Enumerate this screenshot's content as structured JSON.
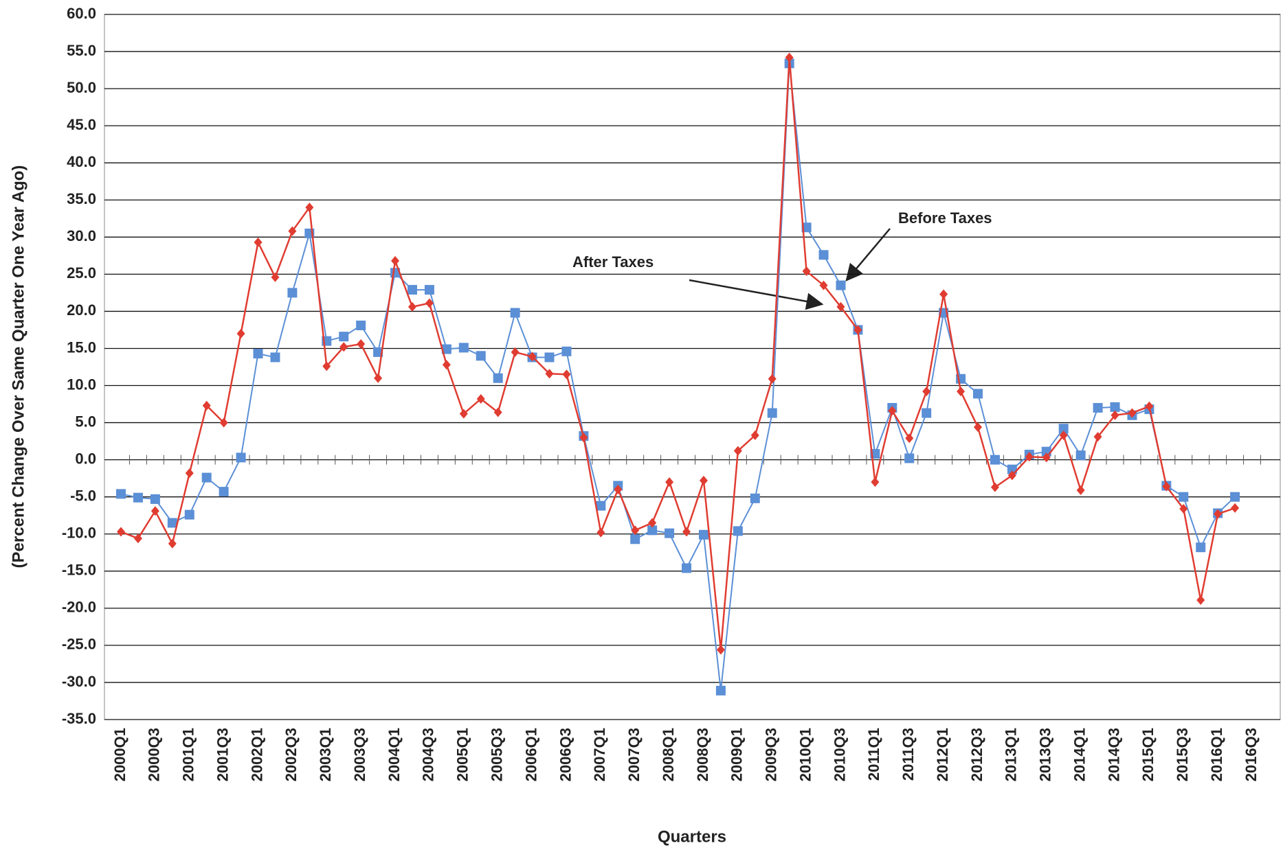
{
  "chart_data": {
    "type": "line",
    "x_label": "Quarters",
    "y_label": "(Percent Change Over Same Quarter One Year Ago)",
    "categories": [
      "2000Q1",
      null,
      "2000Q3",
      null,
      "2001Q1",
      null,
      "2001Q3",
      null,
      "2002Q1",
      null,
      "2002Q3",
      null,
      "2003Q1",
      null,
      "2003Q3",
      null,
      "2004Q1",
      null,
      "2004Q3",
      null,
      "2005Q1",
      null,
      "2005Q3",
      null,
      "2006Q1",
      null,
      "2006Q3",
      null,
      "2007Q1",
      null,
      "2007Q3",
      null,
      "2008Q1",
      null,
      "2008Q3",
      null,
      "2009Q1",
      null,
      "2009Q3",
      null,
      "2010Q1",
      null,
      "2010Q3",
      null,
      "2011Q1",
      null,
      "2011Q3",
      null,
      "2012Q1",
      null,
      "2012Q3",
      null,
      "2013Q1",
      null,
      "2013Q3",
      null,
      "2014Q1",
      null,
      "2014Q3",
      null,
      "2015Q1",
      null,
      "2015Q3",
      null,
      "2016Q1",
      null,
      "2016Q3"
    ],
    "series": [
      {
        "name": "Before Taxes",
        "color": "#5b8fd6",
        "marker": "square",
        "values": [
          -4.6,
          -5.1,
          -5.3,
          -8.5,
          -7.4,
          -2.4,
          -4.3,
          0.3,
          14.3,
          13.8,
          22.5,
          30.5,
          16.0,
          16.6,
          18.1,
          14.5,
          25.2,
          22.9,
          22.9,
          14.9,
          15.1,
          14.0,
          11.0,
          19.8,
          13.8,
          13.8,
          14.6,
          3.2,
          -6.2,
          -3.5,
          -10.7,
          -9.5,
          -9.9,
          -14.6,
          -10.1,
          -31.1,
          -9.6,
          -5.2,
          6.3,
          53.4,
          31.3,
          27.6,
          23.5,
          17.5,
          0.8,
          7.0,
          0.2,
          6.3,
          19.8,
          10.9,
          8.9,
          0.0,
          -1.3,
          0.7,
          1.1,
          4.2,
          0.6,
          7.0,
          7.1,
          6.0,
          6.8,
          -3.5,
          -5.0,
          -11.8,
          -7.2,
          -5.0,
          null
        ]
      },
      {
        "name": "After Taxes",
        "color": "#e03c31",
        "marker": "diamond",
        "values": [
          -9.7,
          -10.6,
          -6.9,
          -11.3,
          -1.8,
          7.3,
          5.0,
          17.0,
          29.3,
          24.6,
          30.8,
          34.0,
          12.6,
          15.2,
          15.6,
          11.0,
          26.8,
          20.6,
          21.1,
          12.8,
          6.2,
          8.2,
          6.4,
          14.5,
          13.9,
          11.6,
          11.5,
          3.0,
          -9.8,
          -4.0,
          -9.5,
          -8.5,
          -3.0,
          -9.7,
          -2.8,
          -25.6,
          1.2,
          3.3,
          10.9,
          54.2,
          25.4,
          23.5,
          20.6,
          17.5,
          -3.0,
          6.6,
          2.9,
          9.2,
          22.3,
          9.2,
          4.4,
          -3.7,
          -2.1,
          0.4,
          0.3,
          3.3,
          -4.1,
          3.1,
          6.0,
          6.3,
          7.2,
          -3.6,
          -6.6,
          -18.9,
          -7.3,
          -6.5,
          null
        ]
      }
    ],
    "ylim": [
      -35,
      60
    ],
    "yticks": [
      {
        "value": 60,
        "label": "60.0"
      },
      {
        "value": 55,
        "label": "55.0"
      },
      {
        "value": 50,
        "label": "50.0"
      },
      {
        "value": 45,
        "label": "45.0"
      },
      {
        "value": 40,
        "label": "40.0"
      },
      {
        "value": 35,
        "label": "35.0"
      },
      {
        "value": 30,
        "label": "30.0"
      },
      {
        "value": 25,
        "label": "25.0"
      },
      {
        "value": 20,
        "label": "20.0"
      },
      {
        "value": 15,
        "label": "15.0"
      },
      {
        "value": 10,
        "label": "10.0"
      },
      {
        "value": 5,
        "label": "5.0"
      },
      {
        "value": 0,
        "label": "0.0"
      },
      {
        "value": -5,
        "label": "-5.0"
      },
      {
        "value": -10,
        "label": "-10.0"
      },
      {
        "value": -15,
        "label": "-15.0"
      },
      {
        "value": -20,
        "label": "-20.0"
      },
      {
        "value": -25,
        "label": "-25.0"
      },
      {
        "value": -30,
        "label": "-30.0"
      },
      {
        "value": -35,
        "label": "-35.0"
      }
    ],
    "grid": true
  }
}
